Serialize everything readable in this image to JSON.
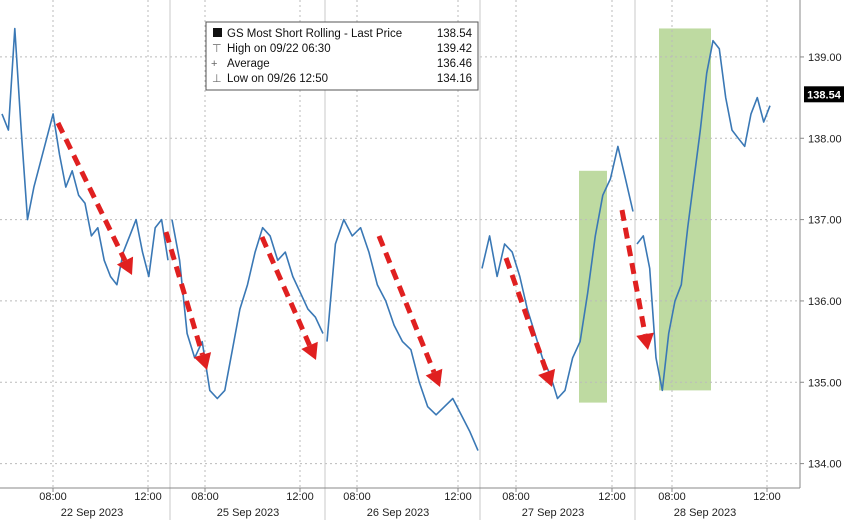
{
  "chart_data": {
    "type": "line",
    "legend": {
      "placement": "top-center",
      "rows": [
        {
          "label": "GS Most Short Rolling - Last Price",
          "value": "138.54"
        },
        {
          "label": "High on 09/22 06:30",
          "value": "139.42"
        },
        {
          "label": "Average",
          "value": "136.46"
        },
        {
          "label": "Low on 09/26 12:50",
          "value": "134.16"
        }
      ]
    },
    "last_price_label": "138.54",
    "last_price": 138.54,
    "ylim": [
      133.7,
      139.7
    ],
    "yticks": [
      {
        "value": 134,
        "label": "134.00"
      },
      {
        "value": 135,
        "label": "135.00"
      },
      {
        "value": 136,
        "label": "136.00"
      },
      {
        "value": 137,
        "label": "137.00"
      },
      {
        "value": 138,
        "label": "138.00"
      },
      {
        "value": 139,
        "label": "139.00"
      }
    ],
    "x_time_ticks": [
      "08:00",
      "12:00",
      "08:00",
      "12:00",
      "08:00",
      "12:00",
      "08:00",
      "12:00",
      "08:00",
      "12:00"
    ],
    "days": [
      "22 Sep 2023",
      "25 Sep 2023",
      "26 Sep 2023",
      "27 Sep 2023",
      "28 Sep 2023"
    ],
    "grid": true,
    "colors": {
      "line": "#3a78b5",
      "arrow": "#e02020",
      "highlight": "#a8cd82",
      "grid": "#bbbbbb"
    },
    "highlight_price_ranges": [
      {
        "low": 134.75,
        "high": 137.6
      },
      {
        "low": 134.9,
        "high": 139.35
      }
    ],
    "series": [
      {
        "day": "22 Sep 2023",
        "values": [
          138.3,
          138.1,
          139.35,
          138.1,
          137.0,
          137.4,
          137.7,
          138.0,
          138.3,
          137.8,
          137.4,
          137.6,
          137.3,
          137.2,
          136.8,
          136.9,
          136.5,
          136.3,
          136.2,
          136.6,
          136.8,
          137.0,
          136.6,
          136.3,
          136.9,
          137.0,
          136.5
        ]
      },
      {
        "day": "25 Sep 2023",
        "values": [
          137.0,
          136.5,
          135.6,
          135.3,
          135.5,
          134.9,
          134.8,
          134.9,
          135.4,
          135.9,
          136.2,
          136.6,
          136.9,
          136.8,
          136.5,
          136.6,
          136.3,
          136.1,
          135.9,
          135.8,
          135.6
        ]
      },
      {
        "day": "26 Sep 2023",
        "values": [
          135.5,
          136.7,
          137.0,
          136.8,
          136.9,
          136.6,
          136.2,
          136.0,
          135.7,
          135.5,
          135.4,
          135.0,
          134.7,
          134.6,
          134.7,
          134.8,
          134.6,
          134.4,
          134.16
        ]
      },
      {
        "day": "27 Sep 2023",
        "values": [
          136.4,
          136.8,
          136.3,
          136.7,
          136.6,
          136.3,
          135.9,
          135.6,
          135.3,
          135.1,
          134.8,
          134.9,
          135.3,
          135.5,
          136.1,
          136.8,
          137.3,
          137.5,
          137.9,
          137.5,
          137.1
        ]
      },
      {
        "day": "28 Sep 2023",
        "values": [
          136.7,
          136.8,
          136.4,
          135.3,
          134.9,
          135.6,
          136.0,
          136.2,
          136.9,
          137.5,
          138.1,
          138.8,
          139.2,
          139.1,
          138.5,
          138.1,
          138.0,
          137.9,
          138.3,
          138.5,
          138.2,
          138.4
        ]
      }
    ]
  }
}
